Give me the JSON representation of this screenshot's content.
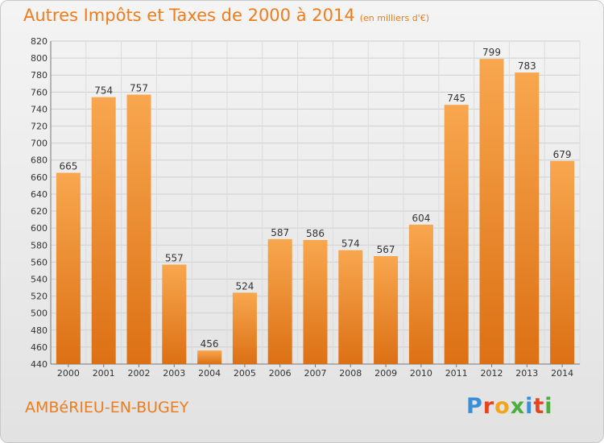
{
  "header": {
    "title": "Autres Impôts et Taxes de 2000 à 2014",
    "subtitle": "(en milliers d'€)"
  },
  "footer": {
    "commune": "AMBéRIEU-EN-BUGEY",
    "logo_letters": [
      "P",
      "r",
      "o",
      "x",
      "i",
      "t",
      "i"
    ],
    "logo_colors": [
      "#3a8fd9",
      "#e8451e",
      "#f2a41c",
      "#4cae3c",
      "#3a8fd9",
      "#e8451e",
      "#4cae3c"
    ]
  },
  "chart_data": {
    "type": "bar",
    "title": "Autres Impôts et Taxes de 2000 à 2014",
    "subtitle": "(en milliers d'€)",
    "categories": [
      "2000",
      "2001",
      "2002",
      "2003",
      "2004",
      "2005",
      "2006",
      "2007",
      "2008",
      "2009",
      "2010",
      "2011",
      "2012",
      "2013",
      "2014"
    ],
    "values": [
      665,
      754,
      757,
      557,
      456,
      524,
      587,
      586,
      574,
      567,
      604,
      745,
      799,
      783,
      679
    ],
    "ylim": [
      440,
      820
    ],
    "yticks": [
      440,
      460,
      480,
      500,
      520,
      540,
      560,
      580,
      600,
      620,
      640,
      660,
      680,
      700,
      720,
      740,
      760,
      780,
      800,
      820
    ],
    "grid": true,
    "bar_color_top": "#f8a74f",
    "bar_color_bottom": "#dc7014",
    "xlabel": "",
    "ylabel": ""
  }
}
